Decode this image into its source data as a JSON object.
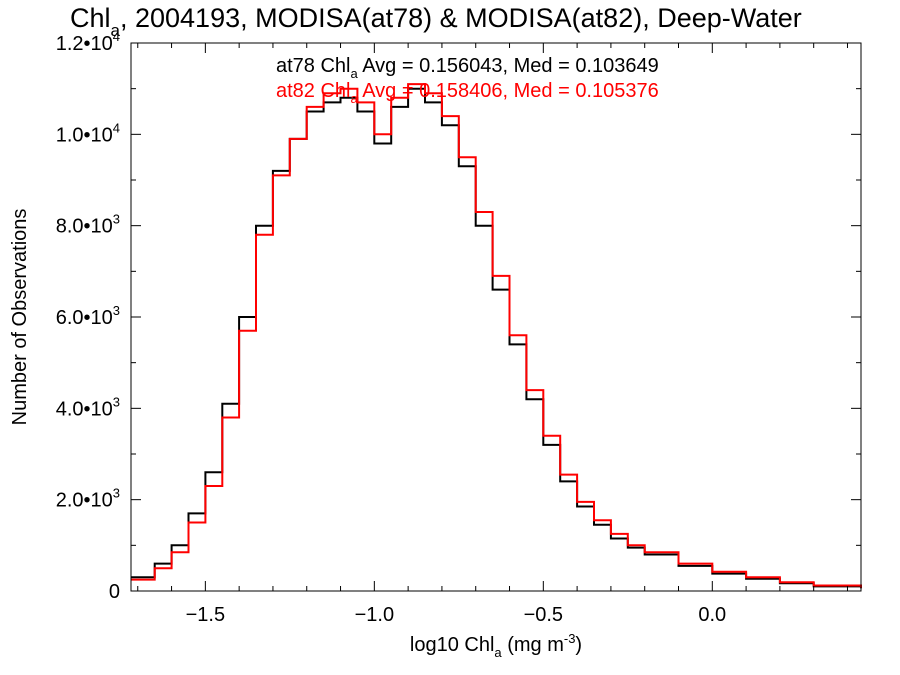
{
  "chart_data": {
    "type": "line",
    "title_parts": [
      "Chl",
      "a",
      ", 2004193, MODISA(at78) & MODISA(at82), Deep-Water"
    ],
    "xlabel_parts": [
      "log10 Chl",
      "a",
      " (mg m",
      "-3",
      ")"
    ],
    "ylabel": "Number of Observations",
    "xlim": [
      -1.72,
      0.44
    ],
    "ylim": [
      0,
      12000
    ],
    "x_ticks": [
      {
        "value": -1.5,
        "label": "−1.5"
      },
      {
        "value": -1.0,
        "label": "−1.0"
      },
      {
        "value": -0.5,
        "label": "−0.5"
      },
      {
        "value": 0.0,
        "label": "0.0"
      }
    ],
    "y_ticks": [
      {
        "value": 0,
        "mant": "0",
        "exp": ""
      },
      {
        "value": 2000,
        "mant": "2.0•10",
        "exp": "3"
      },
      {
        "value": 4000,
        "mant": "4.0•10",
        "exp": "3"
      },
      {
        "value": 6000,
        "mant": "6.0•10",
        "exp": "3"
      },
      {
        "value": 8000,
        "mant": "8.0•10",
        "exp": "3"
      },
      {
        "value": 10000,
        "mant": "1.0•10",
        "exp": "4"
      },
      {
        "value": 12000,
        "mant": "1.2•10",
        "exp": "4"
      }
    ],
    "annotations": [
      {
        "parts": [
          "at78 Chl",
          "a",
          " Avg = 0.156043, Med = 0.103649"
        ],
        "color": "#000000"
      },
      {
        "parts": [
          "at82 Chl",
          "a",
          " Avg = 0.158406, Med = 0.105376"
        ],
        "color": "#ff0000"
      }
    ],
    "series": [
      {
        "color": "#000000",
        "x": [
          -1.72,
          -1.65,
          -1.6,
          -1.55,
          -1.5,
          -1.45,
          -1.4,
          -1.35,
          -1.3,
          -1.25,
          -1.2,
          -1.15,
          -1.1,
          -1.05,
          -1.0,
          -0.95,
          -0.9,
          -0.85,
          -0.8,
          -0.75,
          -0.7,
          -0.65,
          -0.6,
          -0.55,
          -0.5,
          -0.45,
          -0.4,
          -0.35,
          -0.3,
          -0.25,
          -0.2,
          -0.1,
          0.0,
          0.1,
          0.2,
          0.3,
          0.44
        ],
        "y": [
          300,
          600,
          1000,
          1700,
          2600,
          4100,
          6000,
          8000,
          9200,
          9900,
          10500,
          10700,
          10800,
          10500,
          9800,
          10600,
          11000,
          10700,
          10200,
          9300,
          8000,
          6600,
          5400,
          4200,
          3200,
          2400,
          1850,
          1450,
          1150,
          950,
          800,
          550,
          380,
          270,
          170,
          100,
          60
        ]
      },
      {
        "color": "#ff0000",
        "x": [
          -1.72,
          -1.65,
          -1.6,
          -1.55,
          -1.5,
          -1.45,
          -1.4,
          -1.35,
          -1.3,
          -1.25,
          -1.2,
          -1.15,
          -1.1,
          -1.05,
          -1.0,
          -0.95,
          -0.9,
          -0.85,
          -0.8,
          -0.75,
          -0.7,
          -0.65,
          -0.6,
          -0.55,
          -0.5,
          -0.45,
          -0.4,
          -0.35,
          -0.3,
          -0.25,
          -0.2,
          -0.1,
          0.0,
          0.1,
          0.2,
          0.3,
          0.44
        ],
        "y": [
          250,
          500,
          850,
          1500,
          2300,
          3800,
          5700,
          7800,
          9100,
          9900,
          10600,
          10900,
          11000,
          10700,
          10000,
          10800,
          11100,
          10900,
          10400,
          9500,
          8300,
          6900,
          5600,
          4400,
          3400,
          2550,
          1950,
          1550,
          1250,
          1000,
          850,
          600,
          420,
          300,
          190,
          120,
          70
        ]
      }
    ]
  }
}
